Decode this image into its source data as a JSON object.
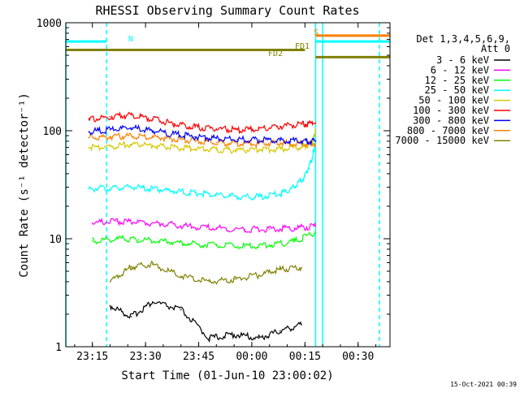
{
  "chart_data": {
    "type": "line",
    "title": "RHESSI Observing Summary Count Rates",
    "xlabel": "Start Time (01-Jun-10 23:00:02)",
    "ylabel": "Count Rate (s⁻¹ detector⁻¹)",
    "x_scale": "time",
    "y_scale": "log",
    "xlim": [
      "23:07:30",
      "00:39:00"
    ],
    "ylim": [
      1,
      1000
    ],
    "x_ticks": [
      "23:15",
      "23:30",
      "23:45",
      "00:00",
      "00:15",
      "00:30"
    ],
    "y_ticks": [
      "1",
      "10",
      "100",
      "1000"
    ],
    "grid": false,
    "legend": {
      "placement": "right",
      "header": [
        "Det 1,3,4,5,6,9,",
        "Att 0"
      ],
      "entries": [
        {
          "label": "3 - 6 keV",
          "color": "#000000"
        },
        {
          "label": "6 - 12 keV",
          "color": "#ff00ff"
        },
        {
          "label": "12 - 25 keV",
          "color": "#00ff00"
        },
        {
          "label": "25 - 50 keV",
          "color": "#00ffff"
        },
        {
          "label": "50 - 100 keV",
          "color": "#d4c800"
        },
        {
          "label": "100 - 300 keV",
          "color": "#ff0000"
        },
        {
          "label": "300 - 800 keV",
          "color": "#0000ff"
        },
        {
          "label": "800 - 7000 keV",
          "color": "#ff8000"
        },
        {
          "label": "7000 - 15000 keV",
          "color": "#808000"
        }
      ]
    },
    "series": [
      {
        "color": "#000000",
        "x": [
          "23:20",
          "23:26",
          "23:32",
          "23:40",
          "23:48",
          "23:55",
          "00:02",
          "00:08",
          "00:14"
        ],
        "y": [
          2.4,
          1.9,
          2.6,
          2.2,
          1.2,
          1.3,
          1.2,
          1.4,
          1.6
        ]
      },
      {
        "color": "#808000",
        "x": [
          "23:20",
          "23:26",
          "23:32",
          "23:40",
          "23:48",
          "23:55",
          "00:02",
          "00:08",
          "00:14"
        ],
        "y": [
          4.0,
          5.5,
          5.8,
          4.5,
          4.0,
          4.2,
          4.6,
          5.2,
          5.4
        ]
      },
      {
        "color": "#00ff00",
        "x": [
          "23:15",
          "23:22",
          "23:28",
          "23:35",
          "23:42",
          "23:50",
          "23:58",
          "00:05",
          "00:12",
          "00:18"
        ],
        "y": [
          9.5,
          10.0,
          9.8,
          9.6,
          9.0,
          8.7,
          8.5,
          8.8,
          9.4,
          11.5
        ]
      },
      {
        "color": "#ff00ff",
        "x": [
          "23:15",
          "23:22",
          "23:28",
          "23:35",
          "23:42",
          "23:50",
          "23:58",
          "00:05",
          "00:12",
          "00:18"
        ],
        "y": [
          14.0,
          14.5,
          14.2,
          13.8,
          13.0,
          12.5,
          12.2,
          12.3,
          12.5,
          13.0
        ]
      },
      {
        "color": "#00ffff",
        "x": [
          "23:14",
          "23:20",
          "23:26",
          "23:32",
          "23:38",
          "23:44",
          "23:50",
          "23:56",
          "00:02",
          "00:08",
          "00:12",
          "00:15",
          "00:17",
          "00:18"
        ],
        "y": [
          29,
          29.5,
          30,
          29,
          27.5,
          26.5,
          25.5,
          24.5,
          24.5,
          26,
          30,
          38,
          55,
          80
        ]
      },
      {
        "color": "#d4c800",
        "x": [
          "23:14",
          "23:20",
          "23:26",
          "23:32",
          "23:38",
          "23:44",
          "23:50",
          "23:56",
          "00:02",
          "00:08",
          "00:14",
          "00:17",
          "00:18"
        ],
        "y": [
          70,
          72,
          75,
          73,
          70,
          68,
          67,
          66,
          67,
          68,
          71,
          76,
          100
        ]
      },
      {
        "color": "#ff8000",
        "x": [
          "23:14",
          "23:20",
          "23:26",
          "23:32",
          "23:38",
          "23:44",
          "23:50",
          "23:56",
          "00:02",
          "00:08",
          "00:14",
          "00:18"
        ],
        "y": [
          86,
          88,
          90,
          87,
          84,
          80,
          78,
          76,
          76,
          77,
          76,
          76
        ]
      },
      {
        "color": "#0000ff",
        "x": [
          "23:14",
          "23:20",
          "23:26",
          "23:32",
          "23:38",
          "23:44",
          "23:50",
          "23:56",
          "00:02",
          "00:08",
          "00:14",
          "00:18"
        ],
        "y": [
          98,
          102,
          106,
          100,
          93,
          88,
          85,
          83,
          82,
          81,
          80,
          80
        ]
      },
      {
        "color": "#ff0000",
        "x": [
          "23:14",
          "23:20",
          "23:26",
          "23:32",
          "23:38",
          "23:44",
          "23:50",
          "23:56",
          "00:02",
          "00:08",
          "00:14",
          "00:18"
        ],
        "y": [
          126,
          135,
          140,
          128,
          116,
          108,
          104,
          102,
          104,
          110,
          115,
          118
        ]
      }
    ],
    "annotations": [
      {
        "label": "N",
        "color": "#00ffff"
      },
      {
        "label": "S",
        "color": "#ff8000"
      },
      {
        "label": "FD1",
        "color": "#808000"
      },
      {
        "label": "FD2",
        "color": "#808000"
      }
    ],
    "status_bars": [
      {
        "name": "N",
        "color": "#00ffff",
        "segments": [
          [
            "23:07:30",
            "23:19"
          ],
          [
            "00:18",
            "00:39"
          ]
        ],
        "y": 670
      },
      {
        "name": "S",
        "color": "#ff8000",
        "segments": [
          [
            "00:18",
            "00:39"
          ]
        ],
        "y": 760
      },
      {
        "name": "FD1",
        "color": "#808000",
        "segments": [
          [
            "23:07:30",
            "00:15"
          ]
        ],
        "y": 560
      },
      {
        "name": "FD2",
        "color": "#808000",
        "segments": [
          [
            "00:18",
            "00:39"
          ]
        ],
        "y": 480
      }
    ],
    "vertical_markers": [
      {
        "time": "23:07:30",
        "style": "solid",
        "color": "#00ffff"
      },
      {
        "time": "23:19",
        "style": "dashed",
        "color": "#00ffff"
      },
      {
        "time": "00:18",
        "style": "solid",
        "color": "#00ffff"
      },
      {
        "time": "00:20",
        "style": "solid",
        "color": "#00ffff"
      },
      {
        "time": "00:36",
        "style": "dashed",
        "color": "#00ffff"
      }
    ]
  },
  "footer": {
    "timestamp": "15-Oct-2021 00:39"
  }
}
